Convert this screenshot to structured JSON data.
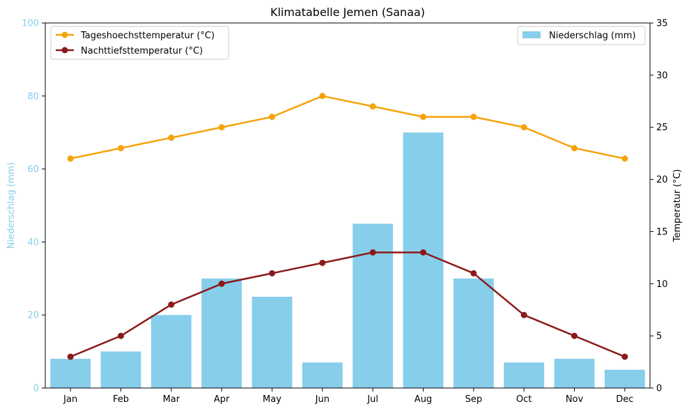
{
  "chart_data": {
    "type": "bar+line",
    "title": "Klimatabelle Jemen (Sanaa)",
    "categories": [
      "Jan",
      "Feb",
      "Mar",
      "Apr",
      "May",
      "Jun",
      "Jul",
      "Aug",
      "Sep",
      "Oct",
      "Nov",
      "Dec"
    ],
    "left_axis": {
      "label": "Niederschlag (mm)",
      "ylim": [
        0,
        100
      ],
      "ticks": [
        "0",
        "20",
        "40",
        "60",
        "80",
        "100"
      ],
      "color": "#87ceeb"
    },
    "right_axis": {
      "label": "Temperatur (°C)",
      "ylim": [
        0,
        35
      ],
      "ticks": [
        "0",
        "5",
        "10",
        "15",
        "20",
        "25",
        "30",
        "35"
      ],
      "color": "#000000"
    },
    "bar_series": {
      "name": "Niederschlag (mm)",
      "axis": "left",
      "color": "#87ceeb",
      "values": [
        8,
        10,
        20,
        30,
        25,
        7,
        45,
        70,
        30,
        7,
        8,
        5
      ]
    },
    "line_series": [
      {
        "name": "Tageshoechsttemperatur (°C)",
        "axis": "right",
        "color": "#f5a30a",
        "values": [
          22,
          23,
          24,
          25,
          26,
          28,
          27,
          26,
          26,
          25,
          23,
          22
        ]
      },
      {
        "name": "Nachttiefsttemperatur (°C)",
        "axis": "right",
        "color": "#8b1a1a",
        "values": [
          3,
          5,
          8,
          10,
          11,
          12,
          13,
          13,
          11,
          7,
          5,
          3
        ]
      }
    ],
    "legends": {
      "lines_position": "top-left",
      "bars_position": "top-right"
    },
    "grid": false
  }
}
